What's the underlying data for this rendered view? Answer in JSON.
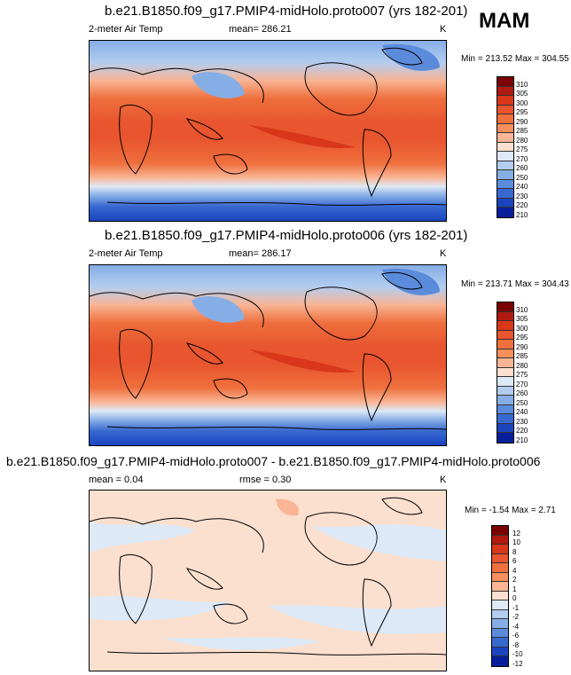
{
  "season": "MAM",
  "panels": [
    {
      "title": "b.e21.B1850.f09_g17.PMIP4-midHolo.proto007 (yrs 182-201)",
      "variable": "2-meter Air Temp",
      "mean": "mean= 286.21",
      "units": "K",
      "minmax": "Min = 213.52 Max = 304.55",
      "levels": [
        "310",
        "305",
        "300",
        "295",
        "290",
        "285",
        "280",
        "275",
        "270",
        "260",
        "250",
        "240",
        "230",
        "220",
        "210"
      ]
    },
    {
      "title": "b.e21.B1850.f09_g17.PMIP4-midHolo.proto006 (yrs 182-201)",
      "variable": "2-meter Air Temp",
      "mean": "mean= 286.17",
      "units": "K",
      "minmax": "Min = 213.71 Max = 304.43",
      "levels": [
        "310",
        "305",
        "300",
        "295",
        "290",
        "285",
        "280",
        "275",
        "270",
        "260",
        "250",
        "240",
        "230",
        "220",
        "210"
      ]
    },
    {
      "title": "b.e21.B1850.f09_g17.PMIP4-midHolo.proto007 - b.e21.B1850.f09_g17.PMIP4-midHolo.proto006",
      "mean": "mean =  0.04",
      "rmse": "rmse =  0.30",
      "units": "K",
      "minmax": "Min =  -1.54 Max =  2.71",
      "levels": [
        "12",
        "10",
        "8",
        "6",
        "4",
        "2",
        "1",
        "0",
        "-1",
        "-2",
        "-4",
        "-6",
        "-8",
        "-10",
        "-12"
      ]
    }
  ],
  "colors": {
    "temp_scale": [
      "#7a0000",
      "#b01a10",
      "#d9361a",
      "#e8552e",
      "#ef6f3d",
      "#f5905d",
      "#f9b595",
      "#fbe0cf",
      "#dde9f7",
      "#b3cdf0",
      "#86aee6",
      "#5b8cdc",
      "#3869d0",
      "#1a45be",
      "#071f9a",
      "#000a6e"
    ],
    "diff_scale": [
      "#7a0000",
      "#b01a10",
      "#d9361a",
      "#e8552e",
      "#ef6f3d",
      "#f5905d",
      "#f9b595",
      "#fbe0cf",
      "#dde9f7",
      "#b3cdf0",
      "#86aee6",
      "#5b8cdc",
      "#3869d0",
      "#1a45be",
      "#071f9a",
      "#000a6e"
    ]
  }
}
